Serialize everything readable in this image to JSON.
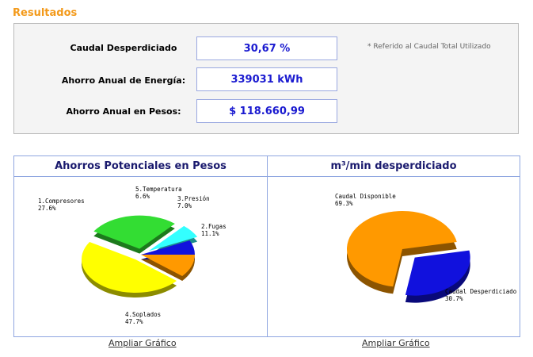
{
  "section_title": "Resultados",
  "results": {
    "rows": [
      {
        "label": "Caudal Desperdiciado",
        "value": "30,67 %"
      },
      {
        "label": "Ahorro Anual de Energía:",
        "value": "339031 kWh"
      },
      {
        "label": "Ahorro Anual en Pesos:",
        "value": "$ 118.660,99"
      }
    ],
    "note": "* Referido al Caudal Total Utilizado"
  },
  "chart_data": [
    {
      "type": "pie",
      "title": "Ahorros Potenciales en Pesos",
      "slices": [
        {
          "name": "2.Fugas",
          "value": 11.1,
          "label": "11.1%",
          "color": "#ff9900"
        },
        {
          "name": "4.Soplados",
          "value": 47.7,
          "label": "47.7%",
          "color": "#ffff00",
          "exploded": true
        },
        {
          "name": "1.Compresores",
          "value": 27.6,
          "label": "27.6%",
          "color": "#33dd33",
          "exploded": true
        },
        {
          "name": "5.Temperatura",
          "value": 6.6,
          "label": "6.6%",
          "color": "#33ffff",
          "exploded": true
        },
        {
          "name": "3.Presión",
          "value": 7.0,
          "label": "7.0%",
          "color": "#1111dd"
        }
      ]
    },
    {
      "type": "pie",
      "title": "m³/min desperdiciado",
      "slices": [
        {
          "name": "Caudal Desperdiciado",
          "value": 30.7,
          "label": "30.7%",
          "color": "#1111dd",
          "exploded": true
        },
        {
          "name": "Caudal Disponible",
          "value": 69.3,
          "label": "69.3%",
          "color": "#ff9900"
        }
      ]
    }
  ],
  "links": {
    "ampliar_1": "Ampliar Gráfico",
    "ampliar_2": "Ampliar Gráfico"
  }
}
